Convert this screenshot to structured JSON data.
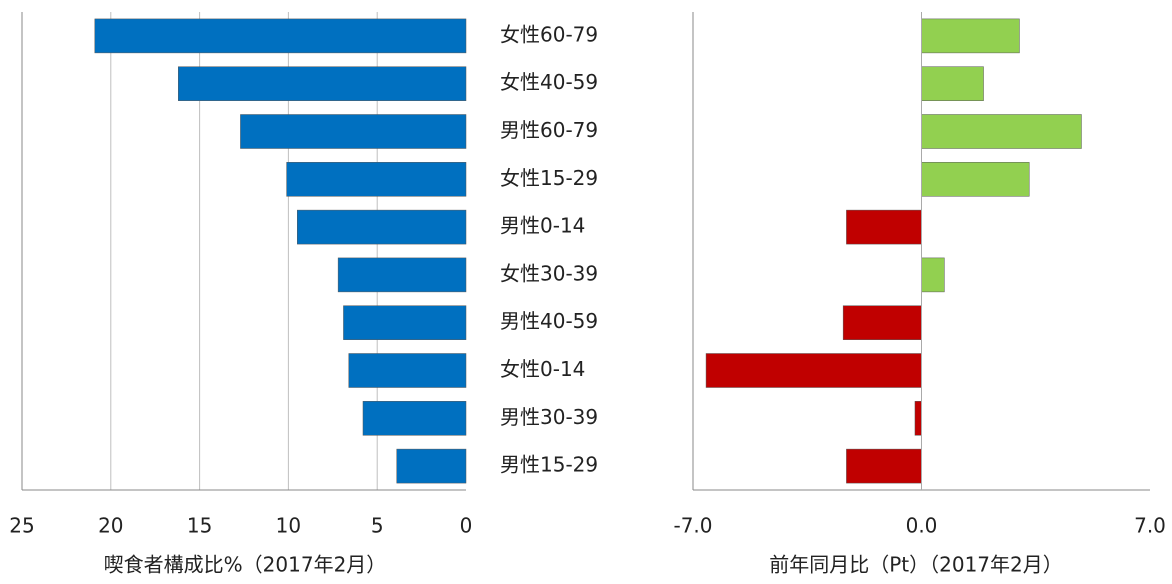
{
  "chart_data": [
    {
      "type": "bar",
      "orientation": "horizontal",
      "categories": [
        "女性60-79",
        "女性40-59",
        "男性60-79",
        "女性15-29",
        "男性0-14",
        "女性30-39",
        "男性40-59",
        "女性0-14",
        "男性30-39",
        "男性15-29"
      ],
      "values": [
        20.9,
        16.2,
        12.7,
        10.1,
        9.5,
        7.2,
        6.9,
        6.6,
        5.8,
        3.9
      ],
      "color": "#0070c0",
      "xlim": [
        25,
        0
      ],
      "xticks": [
        25,
        20,
        15,
        10,
        5,
        0
      ],
      "grid": true,
      "x_label": "喫食者構成比%（2017年2月）"
    },
    {
      "type": "bar",
      "orientation": "horizontal",
      "values": [
        3.0,
        1.9,
        4.9,
        3.3,
        -2.3,
        0.7,
        -2.4,
        -6.6,
        -0.2,
        -2.3
      ],
      "positive_color": "#92d050",
      "negative_color": "#c00000",
      "xlim": [
        -7,
        7
      ],
      "xticks": [
        {
          "value": -7,
          "label": "-7.0"
        },
        {
          "value": 0,
          "label": "0.0"
        },
        {
          "value": 7,
          "label": "7.0"
        }
      ],
      "grid": false,
      "x_label": "前年同月比（Pt）（2017年2月）"
    }
  ]
}
